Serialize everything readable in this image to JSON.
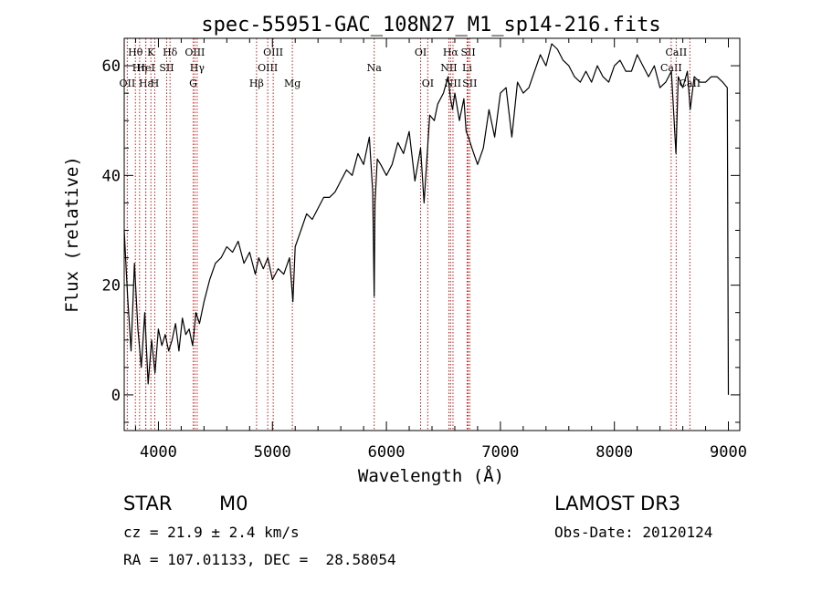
{
  "chart_data": {
    "type": "line",
    "title": "spec-55951-GAC_108N27_M1_sp14-216.fits",
    "xlabel": "Wavelength (Å)",
    "ylabel": "Flux (relative)",
    "xlim": [
      3700,
      9100
    ],
    "ylim": [
      -6.5,
      65
    ],
    "x_ticks": [
      4000,
      5000,
      6000,
      7000,
      8000,
      9000
    ],
    "x_tick_labels": [
      "4000",
      "5000",
      "6000",
      "7000",
      "8000",
      "9000"
    ],
    "y_ticks": [
      0,
      20,
      40,
      60
    ],
    "y_tick_labels": [
      "0",
      "20",
      "40",
      "60"
    ],
    "series": [
      {
        "name": "spectrum",
        "x": [
          3700,
          3730,
          3760,
          3790,
          3820,
          3850,
          3880,
          3910,
          3940,
          3970,
          4000,
          4030,
          4060,
          4090,
          4120,
          4150,
          4180,
          4210,
          4240,
          4270,
          4300,
          4330,
          4360,
          4400,
          4450,
          4500,
          4550,
          4600,
          4650,
          4700,
          4750,
          4800,
          4850,
          4880,
          4920,
          4960,
          5000,
          5050,
          5100,
          5150,
          5180,
          5200,
          5250,
          5300,
          5350,
          5400,
          5450,
          5500,
          5550,
          5600,
          5650,
          5700,
          5750,
          5800,
          5850,
          5880,
          5893,
          5900,
          5920,
          5950,
          6000,
          6050,
          6100,
          6150,
          6200,
          6250,
          6300,
          6330,
          6380,
          6420,
          6450,
          6500,
          6540,
          6563,
          6580,
          6600,
          6640,
          6680,
          6700,
          6720,
          6750,
          6800,
          6850,
          6900,
          6950,
          7000,
          7050,
          7100,
          7150,
          7200,
          7250,
          7300,
          7350,
          7400,
          7450,
          7500,
          7550,
          7600,
          7650,
          7700,
          7750,
          7800,
          7850,
          7900,
          7950,
          8000,
          8050,
          8100,
          8150,
          8200,
          8250,
          8300,
          8350,
          8400,
          8450,
          8500,
          8540,
          8560,
          8600,
          8640,
          8665,
          8700,
          8750,
          8800,
          8850,
          8900,
          8950,
          8990,
          9000
        ],
        "y": [
          30,
          18,
          8,
          24,
          12,
          5,
          15,
          2,
          10,
          4,
          12,
          9,
          11,
          8,
          10,
          13,
          8,
          14,
          11,
          12,
          9,
          15,
          13,
          17,
          21,
          24,
          25,
          27,
          26,
          28,
          24,
          26,
          22,
          25,
          23,
          25,
          21,
          23,
          22,
          25,
          17,
          27,
          30,
          33,
          32,
          34,
          36,
          36,
          37,
          39,
          41,
          40,
          44,
          42,
          47,
          37,
          18,
          35,
          43,
          42,
          40,
          42,
          46,
          44,
          48,
          39,
          45,
          35,
          51,
          50,
          53,
          55,
          58,
          54,
          52,
          55,
          50,
          54,
          48,
          47,
          45,
          42,
          45,
          52,
          47,
          55,
          56,
          47,
          57,
          55,
          56,
          59,
          62,
          60,
          64,
          63,
          61,
          60,
          58,
          57,
          59,
          57,
          60,
          58,
          57,
          60,
          61,
          59,
          59,
          62,
          60,
          58,
          60,
          56,
          57,
          59,
          44,
          58,
          56,
          59,
          52,
          58,
          57,
          57,
          58,
          58,
          57,
          56,
          0
        ]
      }
    ],
    "line_markers": [
      {
        "label": "Hθ",
        "wavelength": 3798,
        "row": 1
      },
      {
        "label": "OII",
        "wavelength": 3727,
        "row": 3
      },
      {
        "label": "Hη",
        "wavelength": 3835,
        "row": 2
      },
      {
        "label": "Hε",
        "wavelength": 3889,
        "row": 3
      },
      {
        "label": "HeI",
        "wavelength": 3889,
        "row": 2
      },
      {
        "label": "K",
        "wavelength": 3934,
        "row": 1
      },
      {
        "label": "H",
        "wavelength": 3968,
        "row": 3
      },
      {
        "label": "SII",
        "wavelength": 4072,
        "row": 2
      },
      {
        "label": "Hδ",
        "wavelength": 4102,
        "row": 1
      },
      {
        "label": "OIII",
        "wavelength": 4320,
        "row": 1
      },
      {
        "label": "Hγ",
        "wavelength": 4340,
        "row": 2
      },
      {
        "label": "G",
        "wavelength": 4305,
        "row": 3
      },
      {
        "label": "Hβ",
        "wavelength": 4861,
        "row": 3
      },
      {
        "label": "OIII",
        "wavelength": 4959,
        "row": 2
      },
      {
        "label": "OIII",
        "wavelength": 5007,
        "row": 1
      },
      {
        "label": "Mg",
        "wavelength": 5175,
        "row": 3
      },
      {
        "label": "Na",
        "wavelength": 5893,
        "row": 2
      },
      {
        "label": "OI",
        "wavelength": 6300,
        "row": 1
      },
      {
        "label": "OI",
        "wavelength": 6363,
        "row": 3
      },
      {
        "label": "Hα",
        "wavelength": 6563,
        "row": 1
      },
      {
        "label": "NII",
        "wavelength": 6548,
        "row": 2
      },
      {
        "label": "NII",
        "wavelength": 6584,
        "row": 3
      },
      {
        "label": "SII",
        "wavelength": 6717,
        "row": 1
      },
      {
        "label": "Li",
        "wavelength": 6708,
        "row": 2
      },
      {
        "label": "SII",
        "wavelength": 6731,
        "row": 3
      },
      {
        "label": "CaII",
        "wavelength": 8498,
        "row": 2
      },
      {
        "label": "CaII",
        "wavelength": 8542,
        "row": 1
      },
      {
        "label": "CaII",
        "wavelength": 8662,
        "row": 3
      }
    ]
  },
  "info": {
    "class": "STAR",
    "subclass": "M0",
    "survey": "LAMOST DR3",
    "cz": "cz = 21.9 ± 2.4 km/s",
    "obs_date": "Obs-Date: 20120124",
    "coords": "RA = 107.01133, DEC =  28.58054"
  },
  "colors": {
    "spectrum": "#000000",
    "marker_line": "#b22222",
    "axes": "#000000",
    "background": "#ffffff"
  }
}
